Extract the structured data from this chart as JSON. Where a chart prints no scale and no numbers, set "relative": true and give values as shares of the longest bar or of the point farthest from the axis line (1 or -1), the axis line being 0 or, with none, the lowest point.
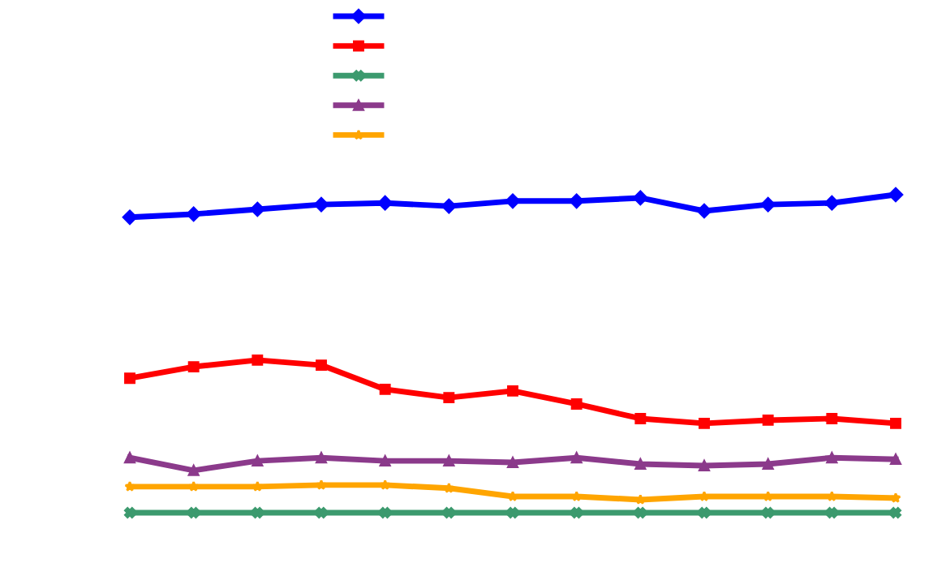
{
  "chart_data": {
    "type": "line",
    "relative": true,
    "line_style": "solid",
    "categories": [
      null,
      null,
      null,
      null,
      null,
      null,
      null,
      null,
      null,
      null,
      null,
      null,
      null
    ],
    "series": [
      {
        "color": "#0000ff",
        "marker": "diamond",
        "values": [
          0.929,
          0.939,
          0.954,
          0.969,
          0.974,
          0.964,
          0.98,
          0.98,
          0.99,
          0.949,
          0.969,
          0.974,
          1
        ]
      },
      {
        "color": "#ff0000",
        "marker": "square",
        "values": [
          0.423,
          0.459,
          0.48,
          0.464,
          0.388,
          0.362,
          0.383,
          0.342,
          0.296,
          0.281,
          0.291,
          0.296,
          0.281
        ]
      },
      {
        "color": "#3c9a6e",
        "marker": "cross",
        "values": [
          0,
          0,
          0,
          0,
          0,
          0,
          0,
          0,
          0,
          0,
          0,
          0,
          0
        ]
      },
      {
        "color": "#8b3a8b",
        "marker": "triangle",
        "values": [
          0.173,
          0.133,
          0.163,
          0.173,
          0.163,
          0.163,
          0.158,
          0.173,
          0.153,
          0.148,
          0.153,
          0.173,
          0.168
        ]
      },
      {
        "color": "#ffa500",
        "marker": "star",
        "values": [
          0.082,
          0.082,
          0.082,
          0.087,
          0.087,
          0.077,
          0.051,
          0.051,
          0.041,
          0.051,
          0.051,
          0.051,
          0.046
        ]
      }
    ]
  }
}
